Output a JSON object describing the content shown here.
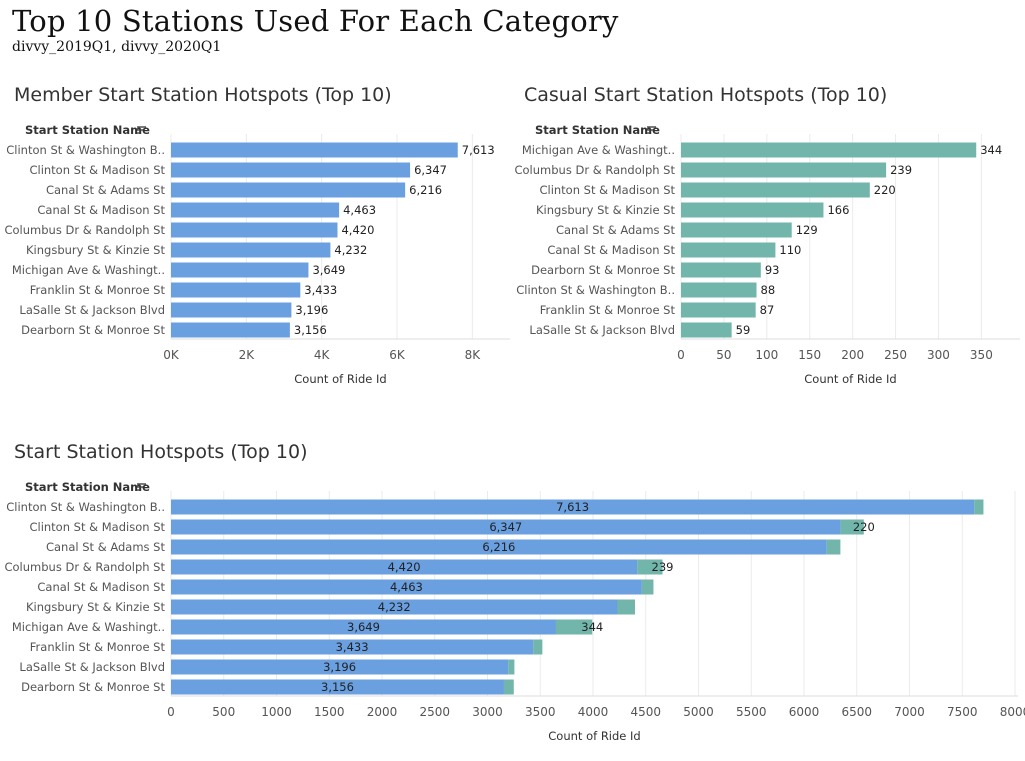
{
  "header": {
    "title": "Top 10 Stations Used For Each Category",
    "subtitle": "divvy_2019Q1, divvy_2020Q1"
  },
  "colors": {
    "member": "#6a9fe0",
    "casual": "#72b6ab",
    "gridline": "#ebebeb",
    "text": "#555555"
  },
  "chart_data": [
    {
      "type": "bar",
      "orientation": "horizontal",
      "title": "Member Start Station Hotspots (Top 10)",
      "row_header": "Start Station Name",
      "xlabel": "Count of Ride Id",
      "categories": [
        "Clinton St & Washington B..",
        "Clinton St & Madison St",
        "Canal St & Adams St",
        "Canal St & Madison St",
        "Columbus Dr & Randolph St",
        "Kingsbury St & Kinzie St",
        "Michigan Ave & Washingt..",
        "Franklin St & Monroe St",
        "LaSalle St & Jackson Blvd",
        "Dearborn St & Monroe St"
      ],
      "values": [
        7613,
        6347,
        6216,
        4463,
        4420,
        4232,
        3649,
        3433,
        3196,
        3156
      ],
      "value_labels": [
        "7,613",
        "6,347",
        "6,216",
        "4,463",
        "4,420",
        "4,232",
        "3,649",
        "3,433",
        "3,196",
        "3,156"
      ],
      "xlim": [
        0,
        9000
      ],
      "ticks": [
        0,
        2000,
        4000,
        6000,
        8000
      ],
      "tick_labels": [
        "0K",
        "2K",
        "4K",
        "6K",
        "8K"
      ],
      "color": "#6a9fe0",
      "grid": true
    },
    {
      "type": "bar",
      "orientation": "horizontal",
      "title": "Casual Start Station Hotspots (Top 10)",
      "row_header": "Start Station Name",
      "xlabel": "Count of Ride Id",
      "categories": [
        "Michigan Ave & Washingt..",
        "Columbus Dr & Randolph St",
        "Clinton St & Madison St",
        "Kingsbury St & Kinzie St",
        "Canal St & Adams St",
        "Canal St & Madison St",
        "Dearborn St & Monroe St",
        "Clinton St & Washington B..",
        "Franklin St & Monroe St",
        "LaSalle St & Jackson Blvd"
      ],
      "values": [
        344,
        239,
        220,
        166,
        129,
        110,
        93,
        88,
        87,
        59
      ],
      "value_labels": [
        "344",
        "239",
        "220",
        "166",
        "129",
        "110",
        "93",
        "88",
        "87",
        "59"
      ],
      "xlim": [
        0,
        395
      ],
      "ticks": [
        0,
        50,
        100,
        150,
        200,
        250,
        300,
        350
      ],
      "tick_labels": [
        "0",
        "50",
        "100",
        "150",
        "200",
        "250",
        "300",
        "350"
      ],
      "color": "#72b6ab",
      "grid": true
    },
    {
      "type": "bar",
      "orientation": "horizontal",
      "stacked": true,
      "title": "Start Station Hotspots (Top 10)",
      "row_header": "Start Station Name",
      "xlabel": "Count of Ride Id",
      "categories": [
        "Clinton St & Washington B..",
        "Clinton St & Madison St",
        "Canal St & Adams St",
        "Columbus Dr & Randolph St",
        "Canal St & Madison St",
        "Kingsbury St & Kinzie St",
        "Michigan Ave & Washingt..",
        "Franklin St & Monroe St",
        "LaSalle St & Jackson Blvd",
        "Dearborn St & Monroe St"
      ],
      "series": [
        {
          "values": [
            7613,
            6347,
            6216,
            4420,
            4463,
            4232,
            3649,
            3433,
            3196,
            3156
          ],
          "value_labels": [
            "7,613",
            "6,347",
            "6,216",
            "4,420",
            "4,463",
            "4,232",
            "3,649",
            "3,433",
            "3,196",
            "3,156"
          ],
          "color": "#6a9fe0"
        },
        {
          "values": [
            88,
            220,
            129,
            239,
            110,
            166,
            344,
            87,
            59,
            93
          ],
          "value_labels": [
            "",
            "220",
            "",
            "239",
            "",
            "",
            "344",
            "",
            "",
            ""
          ],
          "color": "#72b6ab"
        }
      ],
      "xlim": [
        0,
        8000
      ],
      "ticks": [
        0,
        500,
        1000,
        1500,
        2000,
        2500,
        3000,
        3500,
        4000,
        4500,
        5000,
        5500,
        6000,
        6500,
        7000,
        7500,
        8000
      ],
      "tick_labels": [
        "0",
        "500",
        "1000",
        "1500",
        "2000",
        "2500",
        "3000",
        "3500",
        "4000",
        "4500",
        "5000",
        "5500",
        "6000",
        "6500",
        "7000",
        "7500",
        "8000"
      ],
      "grid": true
    }
  ]
}
